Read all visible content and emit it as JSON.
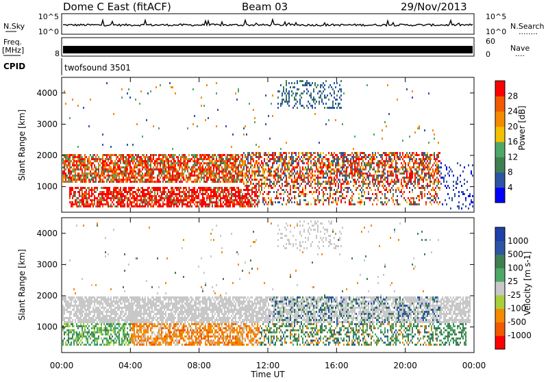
{
  "header": {
    "station": "Dome C East (fitACF)",
    "beam": "Beam 03",
    "date": "29/Nov/2013"
  },
  "noise_panel": {
    "left_label": "N.Sky",
    "left_ticks": [
      "10^5",
      "10^0"
    ],
    "right_ticks": [
      "10^5",
      "10^0"
    ],
    "right_label": "N.Search",
    "right_dots": "........"
  },
  "freq_panel": {
    "left_label_1": "Freq.",
    "left_label_2": "[MHz]",
    "left_tick": "8",
    "right_ticks": [
      "60",
      "0"
    ],
    "right_label": "Nave",
    "right_dots": "...."
  },
  "cpid_panel": {
    "label": "CPID",
    "text": "twofsound 3501"
  },
  "power_panel": {
    "ylabel": "Slant Range [km]",
    "yticks": [
      "4000",
      "3000",
      "2000",
      "1000"
    ],
    "colorbar_label": "Power [dB]",
    "colorbar_ticks": [
      "28",
      "24",
      "20",
      "16",
      "12",
      "8",
      "4"
    ]
  },
  "velocity_panel": {
    "ylabel": "Slant Range [km]",
    "yticks": [
      "4000",
      "3000",
      "2000",
      "1000"
    ],
    "colorbar_label": "Velocity [m s-1]",
    "colorbar_ticks": [
      "1000",
      "500",
      "100",
      "25",
      "-25",
      "-100",
      "-500",
      "-1000"
    ]
  },
  "xaxis": {
    "ticks": [
      "00:00",
      "04:00",
      "08:00",
      "12:00",
      "16:00",
      "20:00",
      "00:00"
    ],
    "label": "Time UT"
  },
  "colors": {
    "power_scale": [
      "#0000ff",
      "#2c55a6",
      "#3f8052",
      "#4da868",
      "#f5c000",
      "#f58a00",
      "#f25a00",
      "#ff0000"
    ],
    "velocity_scale": [
      "#ff0000",
      "#f25a00",
      "#f58a00",
      "#a9cf3f",
      "#c8c8c8",
      "#4da868",
      "#3f8052",
      "#2c55a6",
      "#1f3faa"
    ]
  },
  "chart_data": [
    {
      "type": "heatmap",
      "title": "Power",
      "xlabel": "Time UT",
      "ylabel": "Slant Range [km]",
      "xlim": [
        "00:00",
        "24:00"
      ],
      "ylim": [
        180,
        4500
      ],
      "zlabel": "Power [dB]",
      "zlim": [
        0,
        30
      ],
      "features": [
        {
          "t": [
            "00:00",
            "10:00"
          ],
          "range_km": [
            1200,
            2100
          ],
          "power_dB": 26
        },
        {
          "t": [
            "00:00",
            "11:30"
          ],
          "range_km": [
            400,
            1000
          ],
          "power_dB": 30
        },
        {
          "t": [
            "11:30",
            "21:30"
          ],
          "range_km": [
            1100,
            2100
          ],
          "power_dB": 22
        },
        {
          "t": [
            "13:00",
            "16:00"
          ],
          "range_km": [
            3600,
            4400
          ],
          "power_dB": 6
        }
      ]
    },
    {
      "type": "heatmap",
      "title": "Velocity",
      "xlabel": "Time UT",
      "ylabel": "Slant Range [km]",
      "xlim": [
        "00:00",
        "24:00"
      ],
      "ylim": [
        180,
        4500
      ],
      "zlabel": "Velocity [m s-1]",
      "zlim": [
        -1000,
        1000
      ],
      "features": [
        {
          "t": [
            "00:00",
            "12:00"
          ],
          "range_km": [
            1200,
            2000
          ],
          "velocity_ms": 0
        },
        {
          "t": [
            "04:00",
            "11:30"
          ],
          "range_km": [
            450,
            1150
          ],
          "velocity_ms": -150
        },
        {
          "t": [
            "00:00",
            "04:00"
          ],
          "range_km": [
            400,
            900
          ],
          "velocity_ms": 150
        },
        {
          "t": [
            "12:00",
            "22:00"
          ],
          "range_km": [
            500,
            2000
          ],
          "velocity_ms": 600
        }
      ]
    }
  ]
}
